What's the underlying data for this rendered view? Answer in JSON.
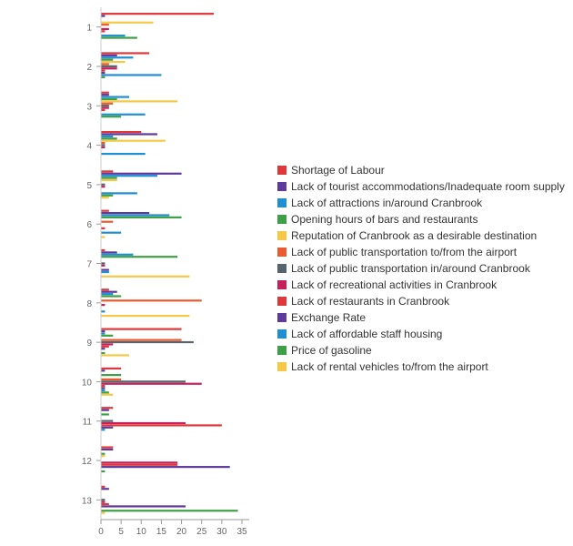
{
  "chart_data": {
    "type": "bar",
    "orientation": "horizontal",
    "categories": [
      "1",
      "2",
      "3",
      "4",
      "5",
      "6",
      "7",
      "8",
      "9",
      "10",
      "11",
      "12",
      "13"
    ],
    "xlim": [
      0,
      35
    ],
    "x_ticks": [
      "0",
      "5",
      "10",
      "15",
      "20",
      "25",
      "30",
      "35"
    ],
    "grid": false,
    "legend_position": "right",
    "series": [
      {
        "name": "Shortage of Labour",
        "color": "#e0373a",
        "values": [
          28,
          12,
          2,
          10,
          3,
          2,
          1,
          2,
          20,
          5,
          3,
          3,
          1
        ]
      },
      {
        "name": "Lack of tourist accommodations/Inadequate room supply",
        "color": "#5d3a9b",
        "values": [
          1,
          4,
          2,
          14,
          20,
          12,
          4,
          4,
          1,
          1,
          2,
          3,
          2
        ]
      },
      {
        "name": "Lack of attractions in/around Cranbrook",
        "color": "#1f8fd1",
        "values": [
          0,
          8,
          7,
          3,
          14,
          17,
          8,
          3,
          1,
          0,
          0,
          0,
          0
        ]
      },
      {
        "name": "Opening hours of bars and restaurants",
        "color": "#3ea046",
        "values": [
          0,
          3,
          4,
          4,
          4,
          20,
          19,
          5,
          3,
          5,
          2,
          1,
          0
        ]
      },
      {
        "name": "Reputation of Cranbrook as a desirable destination",
        "color": "#f7c845",
        "values": [
          13,
          6,
          19,
          16,
          4,
          0,
          0,
          0,
          0,
          0,
          0,
          1,
          0
        ]
      },
      {
        "name": "Lack of public transportation to/from the airport",
        "color": "#ea5a2e",
        "values": [
          2,
          2,
          3,
          1,
          0,
          3,
          0,
          25,
          20,
          5,
          0,
          0,
          0
        ]
      },
      {
        "name": "Lack of public transportation in/around Cranbrook",
        "color": "#56646e",
        "values": [
          0,
          4,
          2,
          1,
          1,
          0,
          1,
          0,
          23,
          21,
          3,
          0,
          1
        ]
      },
      {
        "name": "Lack of recreational activities in Cranbrook",
        "color": "#c61f5a",
        "values": [
          2,
          4,
          2,
          1,
          1,
          0,
          1,
          1,
          3,
          25,
          21,
          19,
          1
        ]
      },
      {
        "name": "Lack of restaurants in Cranbrook",
        "color": "#e0373a",
        "values": [
          1,
          1,
          1,
          0,
          0,
          1,
          0,
          0,
          2,
          1,
          30,
          19,
          2
        ]
      },
      {
        "name": "Exchange Rate",
        "color": "#5d3a9b",
        "values": [
          0,
          1,
          0,
          0,
          0,
          0,
          2,
          0,
          1,
          1,
          3,
          32,
          21
        ]
      },
      {
        "name": "Lack of affordable staff housing",
        "color": "#1f8fd1",
        "values": [
          6,
          15,
          11,
          11,
          9,
          5,
          2,
          1,
          0,
          1,
          1,
          0,
          0
        ]
      },
      {
        "name": "Price of gasoline",
        "color": "#3ea046",
        "values": [
          9,
          1,
          5,
          0,
          3,
          0,
          0,
          0,
          1,
          2,
          0,
          1,
          34
        ]
      },
      {
        "name": "Lack of rental vehicles to/from the airport",
        "color": "#f7c845",
        "values": [
          0,
          0,
          0,
          0,
          2,
          1,
          22,
          22,
          7,
          3,
          0,
          0,
          1
        ]
      }
    ]
  }
}
